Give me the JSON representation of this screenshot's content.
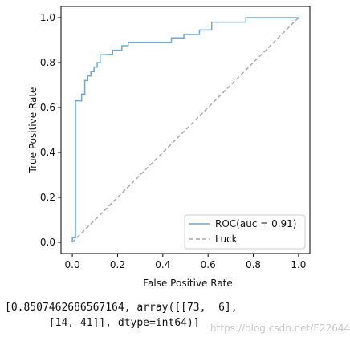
{
  "chart_data": {
    "type": "line",
    "xlabel": "False Positive Rate",
    "ylabel": "True Positive Rate",
    "xlim": [
      -0.05,
      1.05
    ],
    "ylim": [
      -0.05,
      1.05
    ],
    "xticks": [
      0.0,
      0.2,
      0.4,
      0.6,
      0.8,
      1.0
    ],
    "yticks": [
      0.0,
      0.2,
      0.4,
      0.6,
      0.8,
      1.0
    ],
    "xtick_labels": [
      "0.0",
      "0.2",
      "0.4",
      "0.6",
      "0.8",
      "1.0"
    ],
    "ytick_labels": [
      "0.0",
      "0.2",
      "0.4",
      "0.6",
      "0.8",
      "1.0"
    ],
    "grid": false,
    "legend_position": "lower-right",
    "series": [
      {
        "name": "ROC(auc = 0.91)",
        "color": "#6fa8d0",
        "style": "solid",
        "x": [
          0,
          0,
          0.014,
          0.014,
          0.014,
          0.041,
          0.041,
          0.055,
          0.055,
          0.068,
          0.068,
          0.082,
          0.082,
          0.096,
          0.096,
          0.11,
          0.11,
          0.123,
          0.123,
          0.151,
          0.151,
          0.178,
          0.178,
          0.219,
          0.219,
          0.247,
          0.247,
          0.438,
          0.438,
          0.493,
          0.493,
          0.562,
          0.562,
          0.616,
          0.616,
          0.767,
          0.767,
          1.0
        ],
        "y": [
          0,
          0.02,
          0.02,
          0.4,
          0.63,
          0.63,
          0.66,
          0.66,
          0.72,
          0.72,
          0.74,
          0.74,
          0.76,
          0.76,
          0.78,
          0.78,
          0.8,
          0.8,
          0.835,
          0.835,
          0.836,
          0.836,
          0.855,
          0.855,
          0.875,
          0.875,
          0.89,
          0.89,
          0.91,
          0.91,
          0.925,
          0.925,
          0.945,
          0.945,
          0.98,
          0.98,
          1.0,
          1.0
        ]
      },
      {
        "name": "Luck",
        "color": "#a9a9a9",
        "style": "dashed",
        "x": [
          0,
          1
        ],
        "y": [
          0,
          1
        ]
      }
    ]
  },
  "output": {
    "line1": "[0.8507462686567164, array([[73,  6],",
    "line2": "       [14, 41]], dtype=int64)]"
  },
  "watermark": "https://blog.csdn.net/E22644"
}
